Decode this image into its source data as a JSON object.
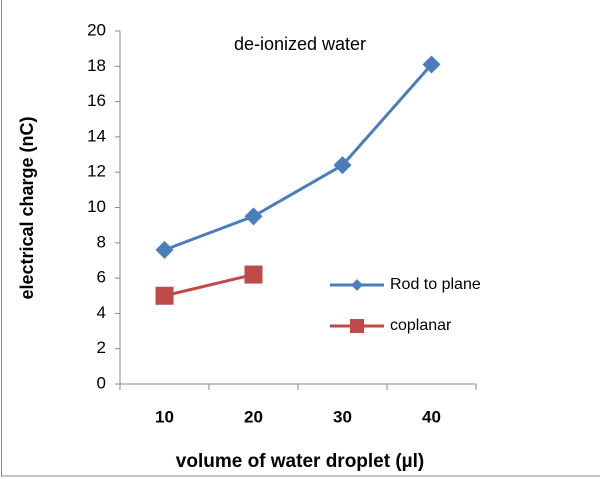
{
  "chart_data": {
    "type": "line",
    "title": "de-ionized  water",
    "x_label": "volume of water droplet (µl)",
    "y_label": "electrical charge (nC)",
    "categories": [
      "10",
      "20",
      "30",
      "40"
    ],
    "series": [
      {
        "name": "Rod to plane",
        "color": "#4a7ebb",
        "marker": "diamond",
        "values": [
          7.6,
          9.5,
          12.4,
          18.1
        ]
      },
      {
        "name": "coplanar",
        "color": "#be4b48",
        "marker": "square",
        "values": [
          5.0,
          6.2,
          null,
          null
        ]
      }
    ],
    "ylim": [
      0,
      20
    ],
    "yticks": [
      0,
      2,
      4,
      6,
      8,
      10,
      12,
      14,
      16,
      18,
      20
    ],
    "grid": false
  }
}
